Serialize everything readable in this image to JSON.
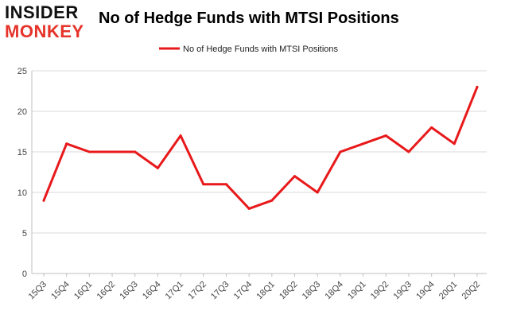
{
  "brand": {
    "line1": "INSIDER",
    "line2": "MONKEY"
  },
  "chart_data": {
    "type": "line",
    "title": "No of Hedge Funds with MTSI Positions",
    "xlabel": "",
    "ylabel": "",
    "categories": [
      "15Q3",
      "15Q4",
      "16Q1",
      "16Q2",
      "16Q3",
      "16Q4",
      "17Q1",
      "17Q2",
      "17Q3",
      "17Q4",
      "18Q1",
      "18Q2",
      "18Q3",
      "18Q4",
      "19Q1",
      "19Q2",
      "19Q3",
      "19Q4",
      "20Q1",
      "20Q2"
    ],
    "series": [
      {
        "name": "No of Hedge Funds with MTSI Positions",
        "values": [
          9,
          16,
          15,
          15,
          15,
          13,
          17,
          11,
          11,
          8,
          9,
          12,
          10,
          15,
          16,
          17,
          15,
          18,
          16,
          23
        ],
        "color": "#e8191b"
      }
    ],
    "ylim": [
      0,
      25
    ],
    "yticks": [
      0,
      5,
      10,
      15,
      20,
      25
    ],
    "grid": true,
    "legend": "top-center"
  }
}
